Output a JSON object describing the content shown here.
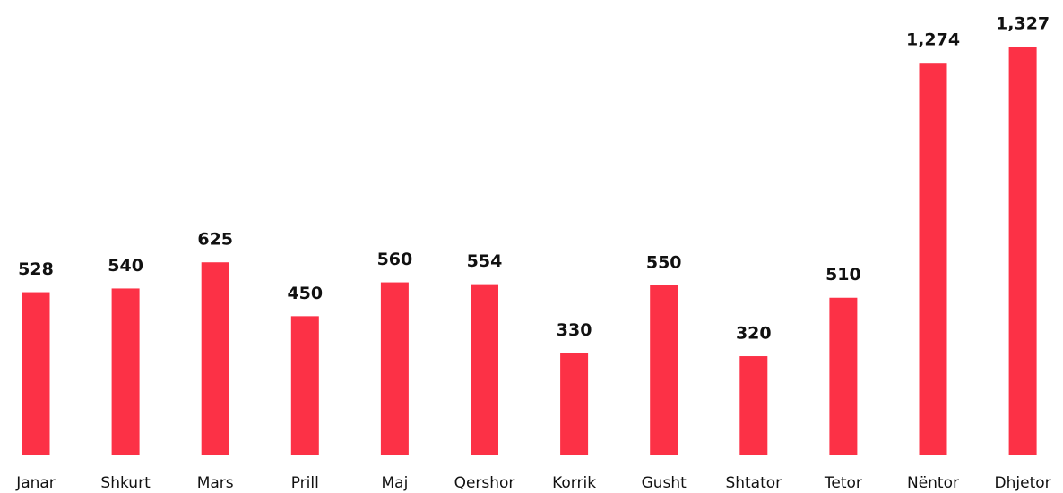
{
  "chart_data": {
    "type": "bar",
    "categories": [
      "Janar",
      "Shkurt",
      "Mars",
      "Prill",
      "Maj",
      "Qershor",
      "Korrik",
      "Gusht",
      "Shtator",
      "Tetor",
      "Nëntor",
      "Dhjetor"
    ],
    "values": [
      528,
      540,
      625,
      450,
      560,
      554,
      330,
      550,
      320,
      510,
      1274,
      1327
    ],
    "value_labels": [
      "528",
      "540",
      "625",
      "450",
      "560",
      "554",
      "330",
      "550",
      "320",
      "510",
      "1,274",
      "1,327"
    ],
    "color": "#fc3146"
  }
}
